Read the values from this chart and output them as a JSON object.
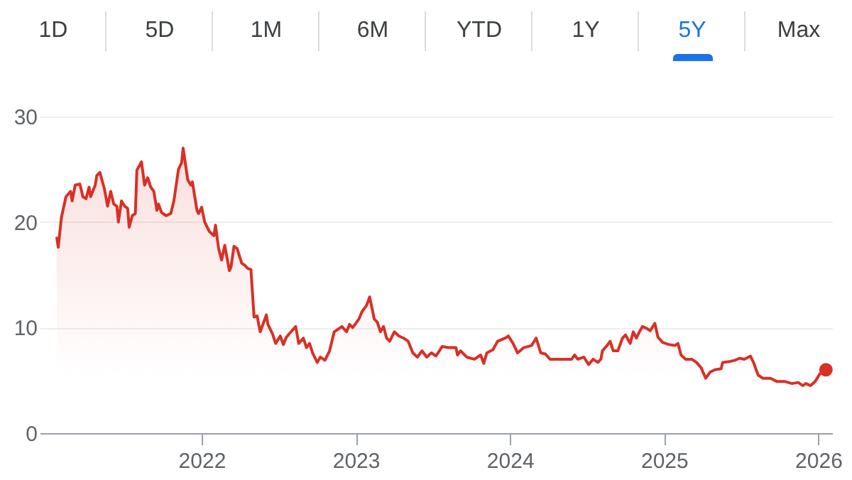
{
  "chart_data": {
    "type": "area",
    "annotations": [
      "1D",
      "5D",
      "1M",
      "6M",
      "YTD",
      "1Y",
      "5Y",
      "Max"
    ],
    "x": [
      2021.06,
      2021.07,
      2021.09,
      2021.12,
      2021.15,
      2021.16,
      2021.18,
      2021.21,
      2021.23,
      2021.25,
      2021.27,
      2021.28,
      2021.31,
      2021.32,
      2021.34,
      2021.37,
      2021.39,
      2021.41,
      2021.43,
      2021.45,
      2021.46,
      2021.48,
      2021.5,
      2021.52,
      2021.53,
      2021.55,
      2021.57,
      2021.58,
      2021.61,
      2021.63,
      2021.65,
      2021.67,
      2021.69,
      2021.71,
      2021.72,
      2021.74,
      2021.77,
      2021.8,
      2021.82,
      2021.85,
      2021.87,
      2021.88,
      2021.91,
      2021.93,
      2021.94,
      2021.97,
      2021.98,
      2022.0,
      2022.02,
      2022.05,
      2022.08,
      2022.09,
      2022.11,
      2022.13,
      2022.15,
      2022.18,
      2022.19,
      2022.21,
      2022.23,
      2022.26,
      2022.28,
      2022.3,
      2022.32,
      2022.34,
      2022.36,
      2022.38,
      2022.42,
      2022.43,
      2022.46,
      2022.48,
      2022.51,
      2022.53,
      2022.55,
      2022.58,
      2022.61,
      2022.63,
      2022.66,
      2022.68,
      2022.7,
      2022.72,
      2022.75,
      2022.77,
      2022.8,
      2022.83,
      2022.86,
      2022.89,
      2022.91,
      2022.94,
      2022.96,
      2022.98,
      2023.02,
      2023.04,
      2023.07,
      2023.09,
      2023.12,
      2023.14,
      2023.16,
      2023.18,
      2023.2,
      2023.22,
      2023.25,
      2023.28,
      2023.31,
      2023.34,
      2023.37,
      2023.4,
      2023.43,
      2023.46,
      2023.49,
      2023.52,
      2023.56,
      2023.6,
      2023.65,
      2023.66,
      2023.68,
      2023.72,
      2023.77,
      2023.81,
      2023.83,
      2023.85,
      2023.89,
      2023.92,
      2023.97,
      2023.99,
      2024.02,
      2024.05,
      2024.09,
      2024.14,
      2024.17,
      2024.2,
      2024.23,
      2024.26,
      2024.31,
      2024.35,
      2024.4,
      2024.42,
      2024.44,
      2024.48,
      2024.51,
      2024.54,
      2024.57,
      2024.59,
      2024.6,
      2024.63,
      2024.65,
      2024.67,
      2024.7,
      2024.73,
      2024.75,
      2024.78,
      2024.8,
      2024.82,
      2024.84,
      2024.86,
      2024.89,
      2024.91,
      2024.94,
      2024.96,
      2024.99,
      2025.03,
      2025.07,
      2025.09,
      2025.11,
      2025.14,
      2025.18,
      2025.21,
      2025.24,
      2025.27,
      2025.3,
      2025.33,
      2025.37,
      2025.38,
      2025.43,
      2025.46,
      2025.49,
      2025.52,
      2025.56,
      2025.58,
      2025.61,
      2025.64,
      2025.69,
      2025.73,
      2025.78,
      2025.83,
      2025.87,
      2025.9,
      2025.92,
      2025.95,
      2025.98,
      2026.01,
      2026.05
    ],
    "series": [
      {
        "color": "#d93025",
        "values": [
          18.6,
          17.6,
          20.4,
          22.4,
          22.9,
          22.0,
          23.5,
          23.6,
          22.4,
          22.2,
          23.3,
          22.4,
          23.5,
          24.4,
          24.7,
          23.1,
          21.5,
          22.9,
          21.7,
          21.5,
          20.0,
          22.0,
          21.5,
          21.3,
          19.5,
          20.6,
          20.8,
          24.9,
          25.7,
          23.5,
          24.2,
          23.3,
          22.9,
          21.1,
          21.7,
          20.9,
          20.6,
          20.8,
          22.0,
          25.0,
          25.6,
          27.0,
          24.0,
          23.5,
          23.8,
          21.1,
          20.8,
          21.4,
          20.0,
          19.1,
          18.7,
          19.7,
          17.5,
          16.4,
          17.8,
          15.4,
          15.7,
          17.7,
          17.5,
          16.1,
          15.9,
          15.6,
          15.5,
          11.0,
          11.1,
          9.6,
          11.2,
          10.3,
          9.4,
          8.5,
          9.2,
          8.4,
          9.1,
          9.6,
          10.1,
          8.5,
          9.0,
          8.1,
          8.5,
          7.6,
          6.7,
          7.2,
          6.9,
          7.8,
          9.6,
          9.9,
          10.1,
          9.6,
          10.3,
          10.0,
          10.8,
          11.5,
          12.1,
          12.9,
          10.8,
          10.5,
          9.6,
          10.1,
          9.0,
          8.7,
          9.6,
          9.2,
          9.0,
          8.7,
          7.6,
          7.2,
          7.8,
          7.2,
          7.6,
          7.3,
          8.2,
          8.1,
          8.1,
          7.4,
          7.8,
          7.2,
          7.0,
          7.4,
          6.6,
          7.6,
          7.9,
          8.7,
          9.0,
          9.2,
          8.5,
          7.6,
          8.1,
          8.3,
          9.0,
          7.6,
          7.5,
          7.0,
          7.0,
          7.0,
          7.0,
          7.4,
          7.0,
          7.2,
          6.5,
          7.0,
          6.7,
          7.0,
          7.8,
          8.3,
          8.7,
          7.8,
          7.8,
          9.0,
          9.3,
          8.5,
          9.6,
          9.0,
          9.6,
          10.1,
          9.9,
          9.7,
          10.4,
          9.1,
          8.6,
          8.4,
          8.3,
          8.5,
          7.4,
          7.0,
          7.0,
          6.7,
          6.2,
          5.2,
          5.8,
          6.0,
          6.1,
          6.7,
          6.8,
          6.9,
          7.1,
          7.0,
          7.3,
          6.7,
          5.5,
          5.2,
          5.2,
          4.9,
          4.9,
          4.7,
          4.8,
          4.5,
          4.7,
          4.5,
          4.9,
          5.6,
          6.0
        ]
      }
    ],
    "xlim": [
      2020.95,
      2026.09
    ],
    "xticks": [
      2022,
      2023,
      2024,
      2025,
      2026
    ],
    "ylim": [
      0,
      30
    ],
    "yticks": [
      0,
      10,
      20,
      30
    ],
    "grid": "y",
    "line_style": "solid"
  }
}
